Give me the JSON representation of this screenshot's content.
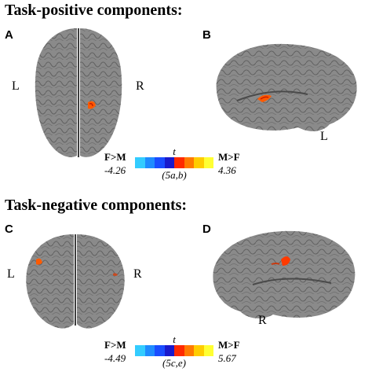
{
  "sections": {
    "positive_title": "Task-positive components:",
    "negative_title": "Task-negative components:"
  },
  "panels": {
    "a": {
      "letter": "A",
      "left_label": "L",
      "right_label": "R"
    },
    "b": {
      "letter": "B",
      "hemisphere_label": "L"
    },
    "c": {
      "letter": "C",
      "left_label": "L",
      "right_label": "R"
    },
    "d": {
      "letter": "D",
      "hemisphere_label": "R"
    }
  },
  "scales": {
    "top": {
      "t_label": "t",
      "left_label": "F>M",
      "right_label": "M>F",
      "min": "-4.26",
      "max": "4.36",
      "ref": "(5a,b)"
    },
    "bottom": {
      "t_label": "t",
      "left_label": "F>M",
      "right_label": "M>F",
      "min": "-4.49",
      "max": "5.67",
      "ref": "(5c,e)"
    }
  },
  "colors": {
    "cortex": "#8a8a8a",
    "cortex_shadow": "#5c5c5c",
    "activation_hot": "#ff5a00",
    "activation_dark": "#c81e00",
    "colorbar": [
      "#33ccff",
      "#1f8cff",
      "#1a4dff",
      "#1a1acc",
      "#ff2a00",
      "#ff7a00",
      "#ffcc00",
      "#ffff33"
    ]
  }
}
